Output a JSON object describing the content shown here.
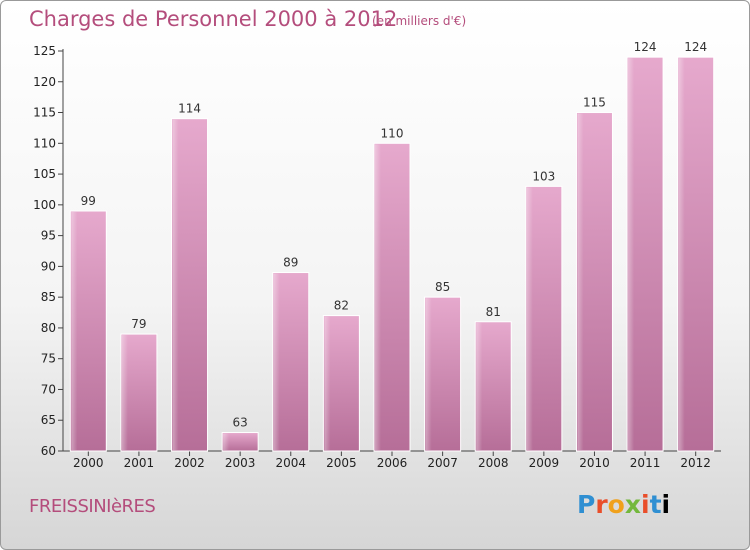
{
  "chart_data": {
    "type": "bar",
    "title": "Charges de Personnel 2000 à 2012",
    "subtitle": "(en milliers d'€)",
    "categories": [
      "2000",
      "2001",
      "2002",
      "2003",
      "2004",
      "2005",
      "2006",
      "2007",
      "2008",
      "2009",
      "2010",
      "2011",
      "2012"
    ],
    "values": [
      99,
      79,
      114,
      63,
      89,
      82,
      110,
      85,
      81,
      103,
      115,
      124,
      124
    ],
    "yticks": [
      60,
      65,
      70,
      75,
      80,
      85,
      90,
      95,
      100,
      105,
      110,
      115,
      120,
      125
    ],
    "ylim": [
      60,
      125
    ],
    "xlabel": "",
    "ylabel": "",
    "grid": false,
    "bar_color": "#d98bb6"
  },
  "footer": {
    "commune": "FREISSINIèRES",
    "logo": "Proxiti"
  }
}
